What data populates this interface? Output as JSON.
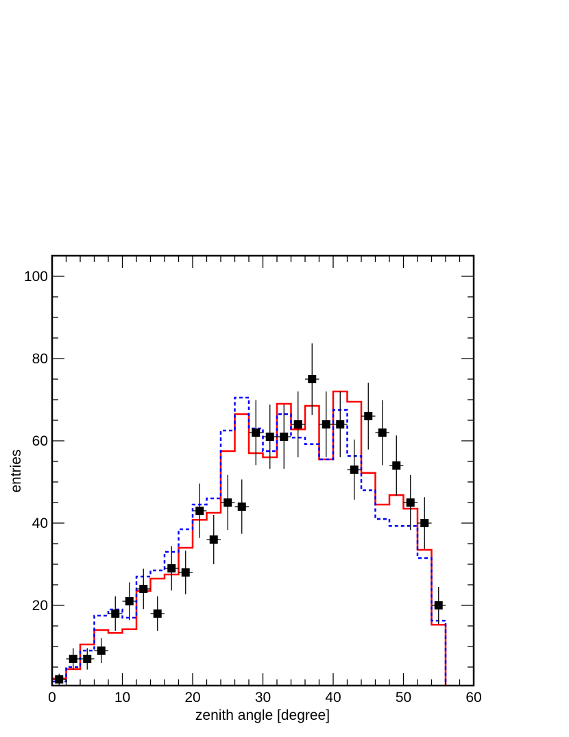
{
  "chart_data": {
    "type": "histogram",
    "xlabel": "zenith angle [degree]",
    "ylabel": "entries",
    "bins": [
      0,
      2,
      4,
      6,
      8,
      10,
      12,
      14,
      16,
      18,
      20,
      22,
      24,
      26,
      28,
      30,
      32,
      34,
      36,
      38,
      40,
      42,
      44,
      46,
      48,
      50,
      52,
      54,
      56,
      58,
      60
    ],
    "series": [
      {
        "style": "step",
        "color": "#ff0000",
        "dash": false,
        "values": [
          2.2,
          4.5,
          10.5,
          14,
          13.3,
          14.2,
          23.5,
          26.5,
          27.5,
          34,
          40.8,
          42.5,
          57.5,
          66.5,
          57,
          56,
          69,
          62.8,
          68.5,
          55.5,
          72,
          69.5,
          52.2,
          44.5,
          46.8,
          43.5,
          33.5,
          15.3,
          0,
          0
        ]
      },
      {
        "style": "step",
        "color": "#0000ff",
        "dash": true,
        "values": [
          1.5,
          5,
          9,
          17.5,
          19,
          17,
          27,
          28.5,
          33,
          38.5,
          44.5,
          46,
          62.5,
          70.5,
          63,
          57.5,
          66.5,
          60.8,
          59.2,
          55.5,
          67.5,
          56.3,
          48,
          41,
          39.3,
          39.3,
          31.5,
          16.3,
          0,
          0
        ]
      },
      {
        "style": "points",
        "color": "#000000",
        "values": [
          2,
          7,
          7,
          9,
          18,
          21,
          24,
          18,
          29,
          28,
          43,
          36,
          45,
          44,
          62,
          61,
          61,
          64,
          75,
          64,
          64,
          53,
          66,
          62,
          54,
          45,
          40,
          20,
          null,
          null
        ],
        "errors": [
          1.4,
          2.6,
          2.6,
          3,
          4.2,
          4.6,
          4.9,
          4.2,
          5.4,
          5.3,
          6.6,
          6,
          6.7,
          6.6,
          7.9,
          7.8,
          7.8,
          8,
          8.7,
          8,
          8,
          7.3,
          8.1,
          7.9,
          7.3,
          6.7,
          6.3,
          4.5,
          null,
          null
        ]
      }
    ],
    "xlim": [
      0,
      60
    ],
    "xticks": [
      0,
      10,
      20,
      30,
      40,
      50,
      60
    ],
    "xminorticks": [
      2,
      4,
      6,
      8,
      12,
      14,
      16,
      18,
      22,
      24,
      26,
      28,
      32,
      34,
      36,
      38,
      42,
      44,
      46,
      48,
      52,
      54,
      56,
      58
    ],
    "ylim": [
      0.5,
      105
    ],
    "yticks": [
      20,
      40,
      60,
      80,
      100
    ],
    "yminorticks": [
      5,
      10,
      15,
      25,
      30,
      35,
      45,
      50,
      55,
      65,
      70,
      75,
      85,
      90,
      95,
      105
    ]
  }
}
